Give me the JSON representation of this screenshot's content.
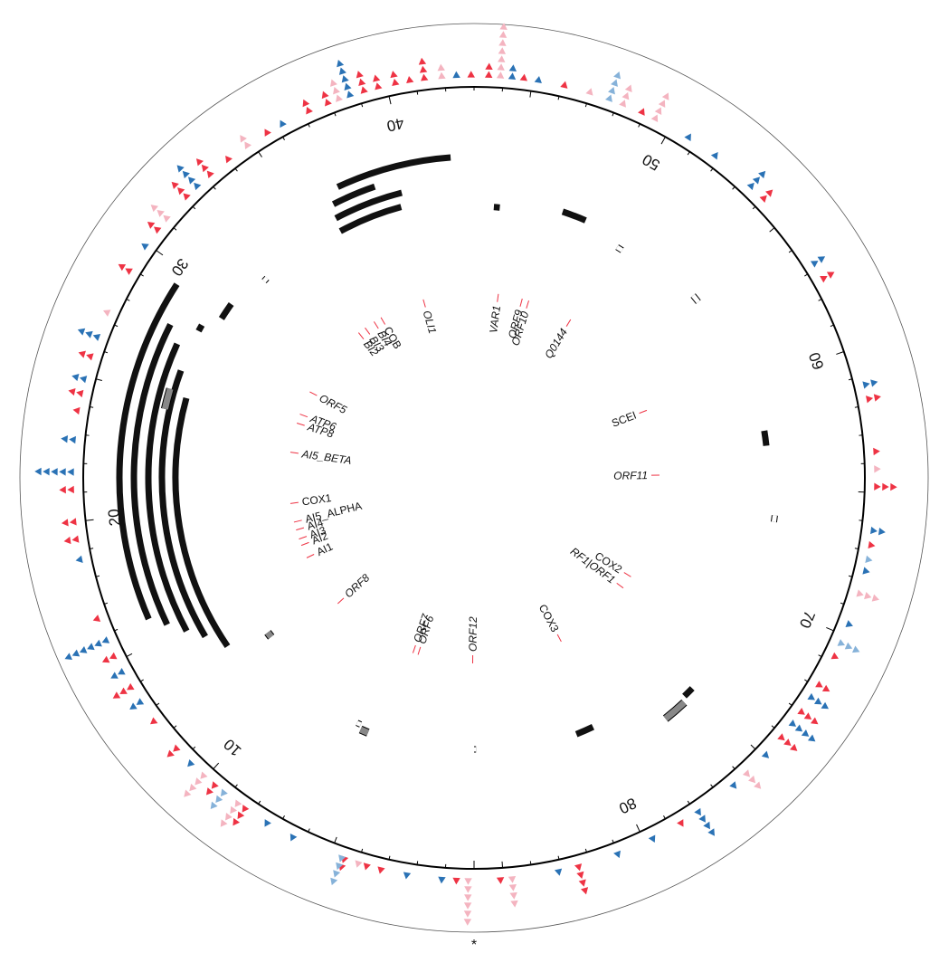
{
  "map": {
    "units": "kb",
    "total_length": 86,
    "tick_labels": [
      "10",
      "20",
      "30",
      "40",
      "50",
      "60",
      "70",
      "80"
    ],
    "origin_mark": "*"
  },
  "colors": {
    "red": "#ee3344",
    "pink": "#f4b4c0",
    "blue": "#2a72b5",
    "lightblue": "#86b2d9",
    "black": "#111111",
    "gray": "#888888"
  },
  "genes": [
    {
      "name": "ORF12",
      "pos": 0.1,
      "style": "italic"
    },
    {
      "name": "ORF6",
      "pos": 4.2,
      "style": "italic"
    },
    {
      "name": "ORF7",
      "pos": 4.6,
      "style": "italic"
    },
    {
      "name": "ORF8",
      "pos": 11.3,
      "style": "italic"
    },
    {
      "name": "AI1",
      "pos": 15.4,
      "style": "upright"
    },
    {
      "name": "AI2",
      "pos": 16.4,
      "style": "upright"
    },
    {
      "name": "AI3",
      "pos": 16.9,
      "style": "upright"
    },
    {
      "name": "AI4",
      "pos": 17.6,
      "style": "upright"
    },
    {
      "name": "AI5_ALPHA",
      "pos": 18.2,
      "style": "upright"
    },
    {
      "name": "COX1",
      "pos": 19.6,
      "style": "upright"
    },
    {
      "name": "AI5_BETA",
      "pos": 23.4,
      "style": "italic"
    },
    {
      "name": "ATP8",
      "pos": 25.6,
      "style": "italic"
    },
    {
      "name": "ATP6",
      "pos": 26.3,
      "style": "italic"
    },
    {
      "name": "ORF5",
      "pos": 28.1,
      "style": "italic"
    },
    {
      "name": "BI2",
      "pos": 33.8,
      "style": "italic"
    },
    {
      "name": "BI3",
      "pos": 34.4,
      "style": "italic"
    },
    {
      "name": "BI4",
      "pos": 35.2,
      "style": "italic"
    },
    {
      "name": "COB",
      "pos": 35.8,
      "style": "upright"
    },
    {
      "name": "OLI1",
      "pos": 39.2,
      "style": "italic"
    },
    {
      "name": "VAR1",
      "pos": 44.8,
      "style": "italic"
    },
    {
      "name": "ORF9",
      "pos": 46.6,
      "style": "italic"
    },
    {
      "name": "ORF10",
      "pos": 47.1,
      "style": "italic"
    },
    {
      "name": "Q0144",
      "pos": 50.5,
      "style": "italic"
    },
    {
      "name": "SCEI",
      "pos": 59.4,
      "style": "upright"
    },
    {
      "name": "ORF11",
      "pos": 64.3,
      "style": "italic"
    },
    {
      "name": "COX2",
      "pos": 72.2,
      "style": "upright"
    },
    {
      "name": "RF1|ORF1",
      "pos": 73.2,
      "style": "italic"
    },
    {
      "name": "COX3",
      "pos": 79.3,
      "style": "upright"
    }
  ],
  "features": [
    {
      "start": 13.3,
      "end": 25.2,
      "r": 330,
      "kind": "black"
    },
    {
      "start": 14.2,
      "end": 26.3,
      "r": 345,
      "kind": "black"
    },
    {
      "start": 14.8,
      "end": 27.3,
      "r": 360,
      "kind": "black"
    },
    {
      "start": 15.4,
      "end": 27.9,
      "r": 376,
      "kind": "black"
    },
    {
      "start": 15.9,
      "end": 29.4,
      "r": 392,
      "kind": "black"
    },
    {
      "start": 24.5,
      "end": 25.4,
      "r": 350,
      "kind": "gray"
    },
    {
      "start": 28.2,
      "end": 28.5,
      "r": 345,
      "kind": "black"
    },
    {
      "start": 29.2,
      "end": 30.0,
      "r": 330,
      "kind": "black"
    },
    {
      "start": 31.8,
      "end": 32.0,
      "r": 318,
      "kind": "white"
    },
    {
      "start": 36.2,
      "end": 39.4,
      "r": 310,
      "kind": "black"
    },
    {
      "start": 36.3,
      "end": 39.6,
      "r": 325,
      "kind": "black"
    },
    {
      "start": 36.5,
      "end": 38.5,
      "r": 340,
      "kind": "black"
    },
    {
      "start": 37.0,
      "end": 42.0,
      "r": 355,
      "kind": "black"
    },
    {
      "start": 44.0,
      "end": 44.3,
      "r": 300,
      "kind": "black"
    },
    {
      "start": 47.4,
      "end": 48.6,
      "r": 310,
      "kind": "black"
    },
    {
      "start": 50.6,
      "end": 50.9,
      "r": 300,
      "kind": "white"
    },
    {
      "start": 55.0,
      "end": 55.4,
      "r": 315,
      "kind": "white"
    },
    {
      "start": 62.3,
      "end": 63.0,
      "r": 325,
      "kind": "black"
    },
    {
      "start": 66.2,
      "end": 66.5,
      "r": 335,
      "kind": "white"
    },
    {
      "start": 75.0,
      "end": 75.5,
      "r": 335,
      "kind": "black"
    },
    {
      "start": 75.7,
      "end": 76.8,
      "r": 340,
      "kind": "gray"
    },
    {
      "start": 79.9,
      "end": 80.8,
      "r": 305,
      "kind": "black"
    },
    {
      "start": 85.9,
      "end": 86.0,
      "r": 300,
      "kind": "white"
    },
    {
      "start": 5.4,
      "end": 5.8,
      "r": 305,
      "kind": "gray"
    },
    {
      "start": 5.9,
      "end": 6.1,
      "r": 300,
      "kind": "white"
    },
    {
      "start": 12.4,
      "end": 12.7,
      "r": 285,
      "kind": "gray"
    }
  ],
  "markers": [
    {
      "pos": 0.2,
      "color": "pink",
      "dir": "out",
      "stack": 6
    },
    {
      "pos": 0.6,
      "color": "red",
      "dir": "out",
      "stack": 1
    },
    {
      "pos": 1.1,
      "color": "blue",
      "dir": "out",
      "stack": 1
    },
    {
      "pos": 2.3,
      "color": "blue",
      "dir": "out",
      "stack": 1
    },
    {
      "pos": 3.2,
      "color": "red",
      "dir": "out",
      "stack": 1
    },
    {
      "pos": 3.7,
      "color": "red",
      "dir": "out",
      "stack": 1
    },
    {
      "pos": 4.0,
      "color": "pink",
      "dir": "out",
      "stack": 1
    },
    {
      "pos": 4.5,
      "color": "red",
      "dir": "out",
      "stack": 2
    },
    {
      "pos": 4.6,
      "color": "lightblue",
      "dir": "out",
      "stack": 4
    },
    {
      "pos": 6.4,
      "color": "blue",
      "dir": "out",
      "stack": 1
    },
    {
      "pos": 7.4,
      "color": "blue",
      "dir": "out",
      "stack": 1
    },
    {
      "pos": 8.3,
      "color": "red",
      "dir": "out",
      "stack": 3
    },
    {
      "pos": 8.6,
      "color": "pink",
      "dir": "out",
      "stack": 4
    },
    {
      "pos": 9.2,
      "color": "lightblue",
      "dir": "out",
      "stack": 3
    },
    {
      "pos": 9.6,
      "color": "red",
      "dir": "out",
      "stack": 2
    },
    {
      "pos": 10.1,
      "color": "pink",
      "dir": "out",
      "stack": 4
    },
    {
      "pos": 10.7,
      "color": "blue",
      "dir": "out",
      "stack": 1
    },
    {
      "pos": 11.4,
      "color": "red",
      "dir": "out",
      "stack": 2
    },
    {
      "pos": 12.6,
      "color": "red",
      "dir": "out",
      "stack": 1
    },
    {
      "pos": 13.4,
      "color": "blue",
      "dir": "out",
      "stack": 2
    },
    {
      "pos": 14.0,
      "color": "red",
      "dir": "out",
      "stack": 3
    },
    {
      "pos": 14.6,
      "color": "blue",
      "dir": "out",
      "stack": 2
    },
    {
      "pos": 15.2,
      "color": "red",
      "dir": "out",
      "stack": 2
    },
    {
      "pos": 15.8,
      "color": "blue",
      "dir": "out",
      "stack": 6
    },
    {
      "pos": 16.6,
      "color": "red",
      "dir": "out",
      "stack": 1
    },
    {
      "pos": 18.7,
      "color": "blue",
      "dir": "out",
      "stack": 1
    },
    {
      "pos": 19.4,
      "color": "red",
      "dir": "out",
      "stack": 2
    },
    {
      "pos": 20.0,
      "color": "red",
      "dir": "out",
      "stack": 2
    },
    {
      "pos": 21.1,
      "color": "red",
      "dir": "out",
      "stack": 2
    },
    {
      "pos": 21.7,
      "color": "blue",
      "dir": "out",
      "stack": 5
    },
    {
      "pos": 22.8,
      "color": "blue",
      "dir": "out",
      "stack": 2
    },
    {
      "pos": 23.8,
      "color": "red",
      "dir": "out",
      "stack": 1
    },
    {
      "pos": 24.4,
      "color": "red",
      "dir": "out",
      "stack": 2
    },
    {
      "pos": 24.9,
      "color": "blue",
      "dir": "out",
      "stack": 2
    },
    {
      "pos": 25.7,
      "color": "red",
      "dir": "out",
      "stack": 2
    },
    {
      "pos": 26.4,
      "color": "blue",
      "dir": "out",
      "stack": 3
    },
    {
      "pos": 27.3,
      "color": "pink",
      "dir": "out",
      "stack": 1
    },
    {
      "pos": 28.9,
      "color": "red",
      "dir": "out",
      "stack": 2
    },
    {
      "pos": 29.9,
      "color": "blue",
      "dir": "out",
      "stack": 1
    },
    {
      "pos": 30.6,
      "color": "red",
      "dir": "out",
      "stack": 2
    },
    {
      "pos": 31.1,
      "color": "pink",
      "dir": "out",
      "stack": 3
    },
    {
      "pos": 32.1,
      "color": "red",
      "dir": "out",
      "stack": 3
    },
    {
      "pos": 32.6,
      "color": "blue",
      "dir": "out",
      "stack": 4
    },
    {
      "pos": 33.2,
      "color": "red",
      "dir": "out",
      "stack": 3
    },
    {
      "pos": 34.0,
      "color": "red",
      "dir": "out",
      "stack": 1
    },
    {
      "pos": 34.8,
      "color": "pink",
      "dir": "out",
      "stack": 2
    },
    {
      "pos": 35.6,
      "color": "red",
      "dir": "out",
      "stack": 1
    },
    {
      "pos": 36.2,
      "color": "blue",
      "dir": "out",
      "stack": 1
    },
    {
      "pos": 37.2,
      "color": "red",
      "dir": "out",
      "stack": 2
    },
    {
      "pos": 37.9,
      "color": "red",
      "dir": "out",
      "stack": 2
    },
    {
      "pos": 38.3,
      "color": "pink",
      "dir": "out",
      "stack": 3
    },
    {
      "pos": 38.7,
      "color": "blue",
      "dir": "out",
      "stack": 5
    },
    {
      "pos": 39.2,
      "color": "red",
      "dir": "out",
      "stack": 3
    },
    {
      "pos": 39.7,
      "color": "red",
      "dir": "out",
      "stack": 2
    },
    {
      "pos": 40.3,
      "color": "red",
      "dir": "out",
      "stack": 2
    },
    {
      "pos": 40.8,
      "color": "red",
      "dir": "out",
      "stack": 1
    },
    {
      "pos": 41.3,
      "color": "red",
      "dir": "out",
      "stack": 3
    },
    {
      "pos": 41.9,
      "color": "pink",
      "dir": "out",
      "stack": 2
    },
    {
      "pos": 42.4,
      "color": "blue",
      "dir": "out",
      "stack": 1
    },
    {
      "pos": 42.9,
      "color": "red",
      "dir": "out",
      "stack": 1
    },
    {
      "pos": 43.5,
      "color": "red",
      "dir": "out",
      "stack": 2
    },
    {
      "pos": 43.9,
      "color": "pink",
      "dir": "out",
      "stack": 7
    },
    {
      "pos": 44.3,
      "color": "blue",
      "dir": "out",
      "stack": 2
    },
    {
      "pos": 44.7,
      "color": "red",
      "dir": "out",
      "stack": 1
    },
    {
      "pos": 45.2,
      "color": "blue",
      "dir": "out",
      "stack": 1
    },
    {
      "pos": 46.1,
      "color": "red",
      "dir": "out",
      "stack": 1
    },
    {
      "pos": 47.0,
      "color": "pink",
      "dir": "out",
      "stack": 1
    },
    {
      "pos": 47.7,
      "color": "lightblue",
      "dir": "out",
      "stack": 4
    },
    {
      "pos": 48.2,
      "color": "pink",
      "dir": "out",
      "stack": 3
    },
    {
      "pos": 48.9,
      "color": "red",
      "dir": "out",
      "stack": 1
    },
    {
      "pos": 49.4,
      "color": "pink",
      "dir": "out",
      "stack": 4
    },
    {
      "pos": 50.7,
      "color": "blue",
      "dir": "out",
      "stack": 1
    },
    {
      "pos": 51.8,
      "color": "blue",
      "dir": "out",
      "stack": 1
    },
    {
      "pos": 53.4,
      "color": "blue",
      "dir": "out",
      "stack": 3
    },
    {
      "pos": 54.0,
      "color": "red",
      "dir": "out",
      "stack": 2
    },
    {
      "pos": 56.8,
      "color": "blue",
      "dir": "out",
      "stack": 2
    },
    {
      "pos": 57.4,
      "color": "red",
      "dir": "out",
      "stack": 2
    },
    {
      "pos": 61.3,
      "color": "blue",
      "dir": "out",
      "stack": 2
    },
    {
      "pos": 61.8,
      "color": "red",
      "dir": "out",
      "stack": 2
    },
    {
      "pos": 63.6,
      "color": "red",
      "dir": "out",
      "stack": 1
    },
    {
      "pos": 64.2,
      "color": "pink",
      "dir": "out",
      "stack": 1
    },
    {
      "pos": 64.8,
      "color": "red",
      "dir": "out",
      "stack": 3
    },
    {
      "pos": 66.3,
      "color": "blue",
      "dir": "out",
      "stack": 2
    },
    {
      "pos": 66.8,
      "color": "red",
      "dir": "out",
      "stack": 1
    },
    {
      "pos": 67.3,
      "color": "lightblue",
      "dir": "out",
      "stack": 1
    },
    {
      "pos": 67.7,
      "color": "blue",
      "dir": "out",
      "stack": 1
    },
    {
      "pos": 68.5,
      "color": "pink",
      "dir": "out",
      "stack": 3
    },
    {
      "pos": 69.6,
      "color": "blue",
      "dir": "out",
      "stack": 1
    },
    {
      "pos": 70.3,
      "color": "lightblue",
      "dir": "out",
      "stack": 3
    },
    {
      "pos": 70.8,
      "color": "red",
      "dir": "out",
      "stack": 1
    },
    {
      "pos": 71.9,
      "color": "red",
      "dir": "out",
      "stack": 2
    },
    {
      "pos": 72.4,
      "color": "blue",
      "dir": "out",
      "stack": 3
    },
    {
      "pos": 73.0,
      "color": "red",
      "dir": "out",
      "stack": 3
    },
    {
      "pos": 73.5,
      "color": "blue",
      "dir": "out",
      "stack": 4
    },
    {
      "pos": 74.1,
      "color": "red",
      "dir": "out",
      "stack": 3
    },
    {
      "pos": 74.9,
      "color": "blue",
      "dir": "out",
      "stack": 1
    },
    {
      "pos": 75.8,
      "color": "pink",
      "dir": "out",
      "stack": 3
    },
    {
      "pos": 76.4,
      "color": "blue",
      "dir": "out",
      "stack": 1
    },
    {
      "pos": 77.9,
      "color": "blue",
      "dir": "out",
      "stack": 4
    },
    {
      "pos": 78.6,
      "color": "red",
      "dir": "out",
      "stack": 1
    },
    {
      "pos": 79.7,
      "color": "blue",
      "dir": "out",
      "stack": 1
    },
    {
      "pos": 81.0,
      "color": "blue",
      "dir": "out",
      "stack": 1
    },
    {
      "pos": 82.4,
      "color": "red",
      "dir": "out",
      "stack": 4
    },
    {
      "pos": 83.1,
      "color": "blue",
      "dir": "out",
      "stack": 1
    },
    {
      "pos": 84.7,
      "color": "pink",
      "dir": "out",
      "stack": 4
    },
    {
      "pos": 85.1,
      "color": "red",
      "dir": "out",
      "stack": 1
    }
  ]
}
